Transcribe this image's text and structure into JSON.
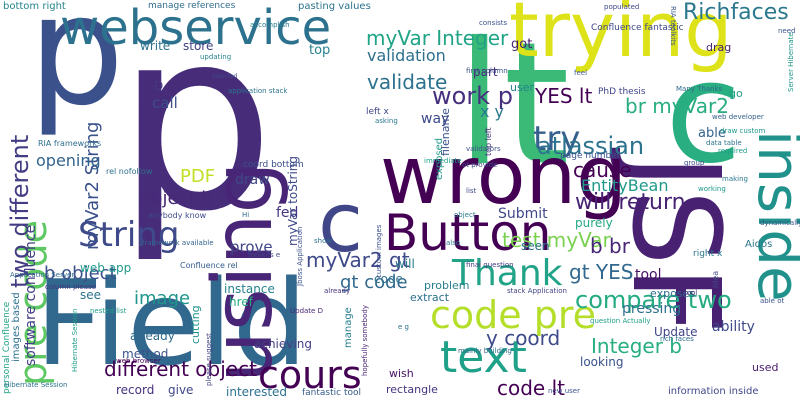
{
  "words": [
    {
      "text": "p",
      "color": "#3b518b"
    },
    {
      "text": "p",
      "color": "#472c7a"
    },
    {
      "text": "lt",
      "color": "#3aba76"
    },
    {
      "text": "c",
      "color": "#28ae80"
    },
    {
      "text": "Field",
      "color": "#31688e"
    },
    {
      "text": "JSF",
      "color": "#482173"
    },
    {
      "text": "using",
      "color": "#482576"
    },
    {
      "text": "wrong",
      "color": "#440154"
    },
    {
      "text": "trying",
      "color": "#dde318"
    },
    {
      "text": "inside",
      "color": "#21918c"
    },
    {
      "text": "webservice",
      "color": "#2c728e"
    },
    {
      "text": "Button",
      "color": "#440154"
    },
    {
      "text": "c",
      "color": "#404688"
    },
    {
      "text": "code pre",
      "color": "#b5de2b"
    },
    {
      "text": "text",
      "color": "#1fa088"
    },
    {
      "text": "pre code",
      "color": "#5ec962"
    },
    {
      "text": "cours",
      "color": "#440154"
    },
    {
      "text": "Thank",
      "color": "#20a386"
    },
    {
      "text": "String",
      "color": "#3e4a89"
    },
    {
      "text": "try",
      "color": "#355f8d"
    },
    {
      "text": "two different",
      "color": "#433d84"
    },
    {
      "text": "compare two",
      "color": "#25ab82"
    },
    {
      "text": "Richfaces",
      "color": "#2a788e"
    },
    {
      "text": "work p",
      "color": "#46307e"
    },
    {
      "text": "myVar2 String",
      "color": "#3b518b"
    },
    {
      "text": "myVar Integer",
      "color": "#20a486"
    },
    {
      "text": "validation",
      "color": "#2e6f8e"
    },
    {
      "text": "validate",
      "color": "#2c728e"
    },
    {
      "text": "YES lt",
      "color": "#440154"
    },
    {
      "text": "br myVar2",
      "color": "#27ad81"
    },
    {
      "text": "atlassian",
      "color": "#2c738e"
    },
    {
      "text": "cause",
      "color": "#440154"
    },
    {
      "text": "will return",
      "color": "#482374"
    },
    {
      "text": "EntityBean",
      "color": "#1f998a"
    },
    {
      "text": "test myVar",
      "color": "#7ad151"
    },
    {
      "text": "b br",
      "color": "#482677"
    },
    {
      "text": "gt YES",
      "color": "#31688e"
    },
    {
      "text": "Integer b",
      "color": "#28ae80"
    },
    {
      "text": "different object",
      "color": "#440154"
    },
    {
      "text": "code lt",
      "color": "#440154"
    },
    {
      "text": "y coord",
      "color": "#3e4a89"
    },
    {
      "text": "myVar2 gt",
      "color": "#3e4989"
    },
    {
      "text": "gt code",
      "color": "#31688e"
    },
    {
      "text": "image",
      "color": "#1f968b"
    },
    {
      "text": "object b",
      "color": "#482878"
    },
    {
      "text": "b object",
      "color": "#3b518b"
    },
    {
      "text": "PDF",
      "color": "#c2df23"
    },
    {
      "text": "prove",
      "color": "#404688"
    },
    {
      "text": "draw",
      "color": "#3f4788"
    },
    {
      "text": "call",
      "color": "#3d4e8a"
    },
    {
      "text": "fed",
      "color": "#453581"
    },
    {
      "text": "opening",
      "color": "#33638d"
    },
    {
      "text": "software confluence",
      "color": "#433e85"
    },
    {
      "text": "images based",
      "color": "#2d718e"
    },
    {
      "text": "personal Confluence",
      "color": "#20a386"
    },
    {
      "text": "write",
      "color": "#2c728e"
    },
    {
      "text": "store",
      "color": "#424086"
    },
    {
      "text": "top",
      "color": "#26828e"
    },
    {
      "text": "got",
      "color": "#481f70"
    },
    {
      "text": "x y",
      "color": "#2a788e"
    },
    {
      "text": "manage references",
      "color": "#2f6c8e"
    },
    {
      "text": "pasting values",
      "color": "#2c728e"
    },
    {
      "text": "bottom right",
      "color": "#25848e"
    },
    {
      "text": "Submit",
      "color": "#3f4889"
    },
    {
      "text": "purely",
      "color": "#22a884"
    },
    {
      "text": "tool",
      "color": "#471164"
    },
    {
      "text": "pressing",
      "color": "#2d708e"
    },
    {
      "text": "ability",
      "color": "#3e4989"
    },
    {
      "text": "Update",
      "color": "#404688"
    },
    {
      "text": "looking",
      "color": "#3b528b"
    },
    {
      "text": "used",
      "color": "#481b6d"
    },
    {
      "text": "Aidos",
      "color": "#2a768e"
    },
    {
      "text": "seen",
      "color": "#2c728e"
    },
    {
      "text": "extract",
      "color": "#2c718e"
    },
    {
      "text": "problem",
      "color": "#287d8e"
    },
    {
      "text": "exposes",
      "color": "#2f6c8e"
    },
    {
      "text": "way",
      "color": "#3e4a89"
    },
    {
      "text": "part",
      "color": "#472a7a"
    },
    {
      "text": "user",
      "color": "#26828e"
    },
    {
      "text": "exposed",
      "color": "#1f9a8a"
    },
    {
      "text": "able",
      "color": "#33638d"
    },
    {
      "text": "go",
      "color": "#1f9e89"
    },
    {
      "text": "interested",
      "color": "#2d708e"
    },
    {
      "text": "wish",
      "color": "#471164"
    },
    {
      "text": "rectangle",
      "color": "#45337d"
    },
    {
      "text": "give",
      "color": "#404688"
    },
    {
      "text": "record",
      "color": "#46327e"
    },
    {
      "text": "method",
      "color": "#3b528b"
    },
    {
      "text": "already",
      "color": "#2f6b8e"
    },
    {
      "text": "achieving",
      "color": "#433e85"
    },
    {
      "text": "manage",
      "color": "#277f8e"
    },
    {
      "text": "cutting",
      "color": "#1f958b"
    },
    {
      "text": "instance",
      "color": "#26818e"
    },
    {
      "text": "href",
      "color": "#25ac82"
    },
    {
      "text": "will",
      "color": "#2a788e"
    },
    {
      "text": "see",
      "color": "#2c738e"
    },
    {
      "text": "web app",
      "color": "#1f9a8a"
    },
    {
      "text": "code",
      "color": "#2c728e"
    },
    {
      "text": "D",
      "color": "#443983"
    },
    {
      "text": "fantastic tool",
      "color": "#365c8d"
    },
    {
      "text": "information inside",
      "color": "#3f4889"
    },
    {
      "text": "Confluence fantastic",
      "color": "#3f4788"
    },
    {
      "text": "drag",
      "color": "#482173"
    },
    {
      "text": "PhD thesis",
      "color": "#404588"
    },
    {
      "text": "page number",
      "color": "#3a548c"
    },
    {
      "text": "coord bottom",
      "color": "#3d4e8a"
    },
    {
      "text": "myVar toString",
      "color": "#3e4989"
    },
    {
      "text": "top left",
      "color": "#46307e"
    },
    {
      "text": "RIA frameworks",
      "color": "#2e6e8e"
    },
    {
      "text": "rel nofollow",
      "color": "#2e6f8e"
    },
    {
      "text": "Confluence rel",
      "color": "#355f8d"
    },
    {
      "text": "web developer",
      "color": "#34618d"
    },
    {
      "text": "draw custom",
      "color": "#1f978b"
    },
    {
      "text": "anybody know",
      "color": "#3e4989"
    },
    {
      "text": "Many Thanks",
      "color": "#30698e"
    },
    {
      "text": "RIA toolkits",
      "color": "#3a548c"
    },
    {
      "text": "Server Hibernate",
      "color": "#1f978b"
    },
    {
      "text": "Application Server",
      "color": "#31688e"
    },
    {
      "text": "Hibernate Session",
      "color": "#2d718e"
    },
    {
      "text": "Jboss Application",
      "color": "#3b518b"
    },
    {
      "text": "application stack",
      "color": "#2b748e"
    },
    {
      "text": "stack Application",
      "color": "#414487"
    },
    {
      "text": "nested list",
      "color": "#1f9e89"
    },
    {
      "text": "list",
      "color": "#3e4a89"
    },
    {
      "text": "column please",
      "color": "#46327e"
    },
    {
      "text": "question Actually",
      "color": "#1fa088"
    },
    {
      "text": "left x",
      "color": "#404688"
    },
    {
      "text": "right x",
      "color": "#2a788e"
    },
    {
      "text": "first column",
      "color": "#3b518b"
    },
    {
      "text": "data table",
      "color": "#2c738e"
    },
    {
      "text": "validators",
      "color": "#3b528b"
    },
    {
      "text": "tool",
      "color": "#472c7a"
    },
    {
      "text": "idea",
      "color": "#3f4889"
    },
    {
      "text": "Update D",
      "color": "#482677"
    },
    {
      "text": "framework available",
      "color": "#33638d"
    },
    {
      "text": "toolkits e",
      "color": "#3e4989"
    },
    {
      "text": "please suggest",
      "color": "#414487"
    },
    {
      "text": "Hi",
      "color": "#2e6e8e"
    },
    {
      "text": "e g",
      "color": "#2d708e"
    },
    {
      "text": "mainly building",
      "color": "#2f6b8e"
    },
    {
      "text": "web browser",
      "color": "#440154"
    },
    {
      "text": "new user",
      "color": "#3c508b"
    },
    {
      "text": "group",
      "color": "#3e4989"
    },
    {
      "text": "working",
      "color": "#1f9a8a"
    },
    {
      "text": "required",
      "color": "#1f9e89"
    },
    {
      "text": "updating",
      "color": "#26828e"
    },
    {
      "text": "asking",
      "color": "#2a788e"
    },
    {
      "text": "final question",
      "color": "#433d84"
    },
    {
      "text": "custom images",
      "color": "#3b518b"
    },
    {
      "text": "immediate",
      "color": "#1f9e89"
    },
    {
      "text": "consists",
      "color": "#3b528b"
    },
    {
      "text": "populated",
      "color": "#404688"
    },
    {
      "text": "already",
      "color": "#45337d"
    },
    {
      "text": "able ot",
      "color": "#3b518b"
    },
    {
      "text": "ot provide",
      "color": "#3f4889"
    },
    {
      "text": "selected",
      "color": "#3e4a89"
    },
    {
      "text": "hopefully somebody",
      "color": "#482777"
    },
    {
      "text": "Hibernate Session",
      "color": "#1f9e89"
    },
    {
      "text": "dynamically",
      "color": "#39568c"
    },
    {
      "text": "accomplish",
      "color": "#287c8e"
    },
    {
      "text": "feel",
      "color": "#3a548c"
    },
    {
      "text": "filename",
      "color": "#3b518b"
    },
    {
      "text": "making",
      "color": "#2a788e"
    },
    {
      "text": "need",
      "color": "#3b528b"
    },
    {
      "text": "also",
      "color": "#2c728e"
    },
    {
      "text": "object",
      "color": "#2a788e"
    },
    {
      "text": "rich faces",
      "color": "#2f6c8e"
    },
    {
      "text": "show",
      "color": "#2c728e"
    }
  ]
}
